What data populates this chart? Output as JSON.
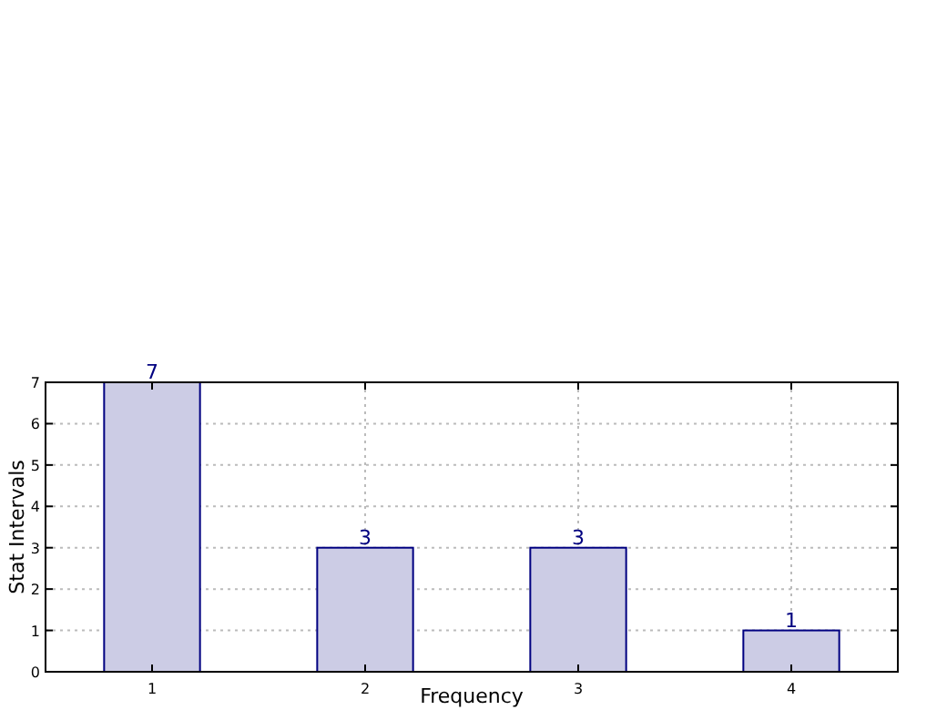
{
  "chart_data": {
    "type": "bar",
    "xlabel": "Frequency",
    "ylabel": "Stat Intervals",
    "x": [
      1,
      2,
      3,
      4
    ],
    "values": [
      7,
      3,
      3,
      1
    ],
    "color": "#ccccE5",
    "xlim": [
      0.5,
      4.5
    ],
    "xticks": [
      1,
      2,
      3,
      4
    ],
    "ylim": [
      0,
      7
    ],
    "yticks": [
      0,
      1,
      2,
      3,
      4,
      5,
      6,
      7
    ],
    "grid": true,
    "data_labels": true
  }
}
